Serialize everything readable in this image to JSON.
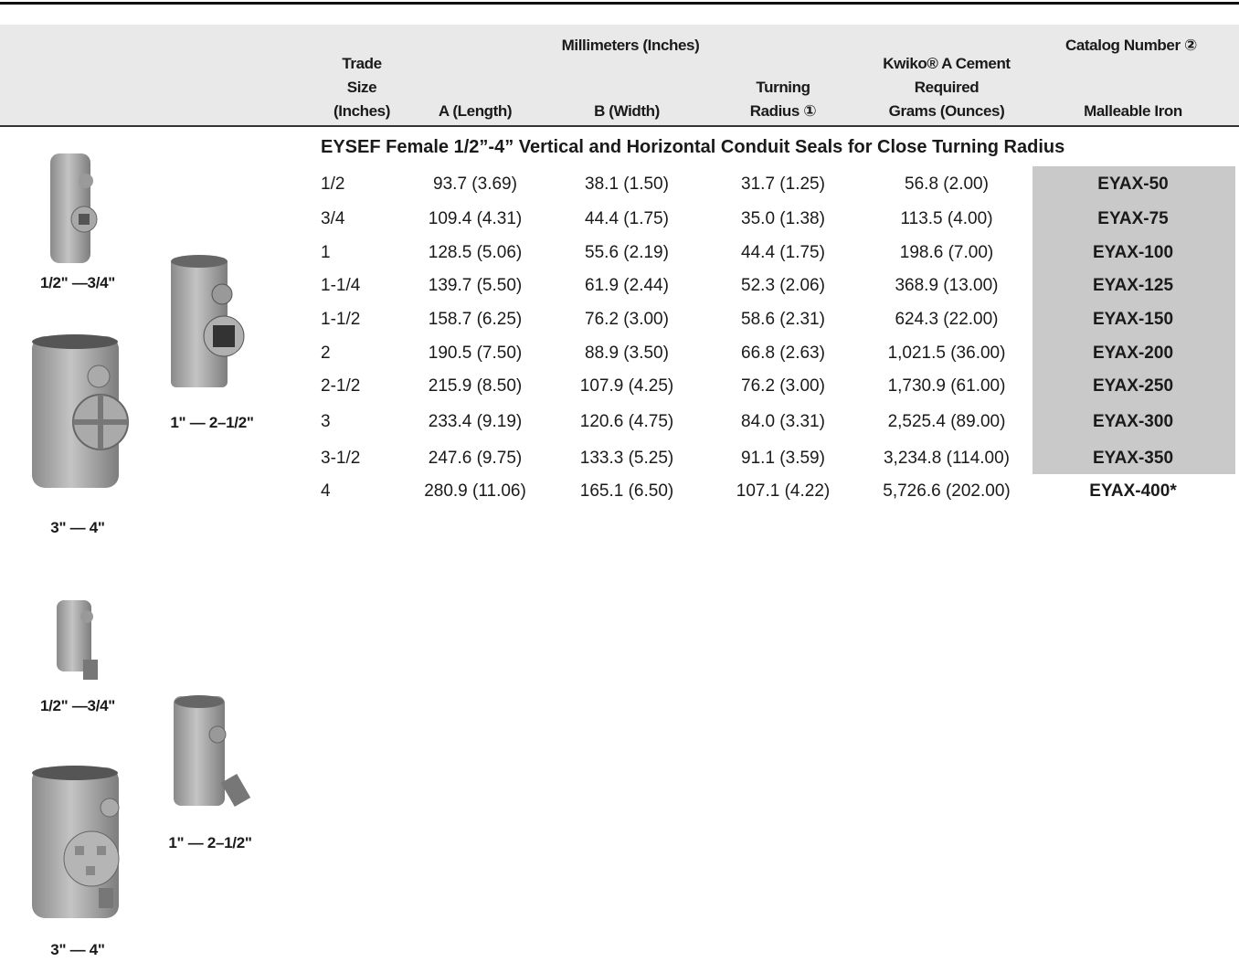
{
  "header": {
    "group": "Millimeters (Inches)",
    "catalog_group": "Catalog Number ②",
    "columns": [
      [
        "Trade",
        "Size",
        "(Inches)"
      ],
      [
        "A (Length)"
      ],
      [
        "B (Width)"
      ],
      [
        "Turning",
        "Radius ①"
      ],
      [
        "Kwiko® A Cement",
        "Required",
        "Grams (Ounces)"
      ],
      [
        "Malleable Iron"
      ]
    ]
  },
  "table": {
    "section_title": "EYSEF Female 1/2”-4” Vertical and Horizontal Conduit Seals for Close Turning Radius",
    "rows": [
      [
        "1/2",
        "93.7 (3.69)",
        "38.1 (1.50)",
        "31.7 (1.25)",
        "56.8 (2.00)",
        "EYAX-50"
      ],
      [
        "3/4",
        "109.4 (4.31)",
        "44.4 (1.75)",
        "35.0 (1.38)",
        "113.5 (4.00)",
        "EYAX-75"
      ],
      [
        "1",
        "128.5 (5.06)",
        "55.6 (2.19)",
        "44.4 (1.75)",
        "198.6 (7.00)",
        "EYAX-100"
      ],
      [
        "1-1/4",
        "139.7 (5.50)",
        "61.9 (2.44)",
        "52.3 (2.06)",
        "368.9 (13.00)",
        "EYAX-125"
      ],
      [
        "1-1/2",
        "158.7 (6.25)",
        "76.2 (3.00)",
        "58.6 (2.31)",
        "624.3 (22.00)",
        "EYAX-150"
      ],
      [
        "2",
        "190.5 (7.50)",
        "88.9 (3.50)",
        "66.8 (2.63)",
        "1,021.5 (36.00)",
        "EYAX-200"
      ],
      [
        "2-1/2",
        "215.9 (8.50)",
        "107.9 (4.25)",
        "76.2 (3.00)",
        "1,730.9 (61.00)",
        "EYAX-250"
      ],
      [
        "3",
        "233.4 (9.19)",
        "120.6 (4.75)",
        "84.0 (3.31)",
        "2,525.4 (89.00)",
        "EYAX-300"
      ],
      [
        "3-1/2",
        "247.6 (9.75)",
        "133.3 (5.25)",
        "91.1 (3.59)",
        "3,234.8 (114.00)",
        "EYAX-350"
      ],
      [
        "4",
        "280.9 (11.06)",
        "165.1 (6.50)",
        "107.1 (4.22)",
        "5,726.6 (202.00)",
        "EYAX-400*"
      ]
    ]
  },
  "images": {
    "captions": [
      "1/2\" —3/4\"",
      "1\" — 2–1/2\"",
      "3\" — 4\"",
      "1/2\" —3/4\"",
      "1\" — 2–1/2\"",
      "3\" — 4\""
    ]
  }
}
